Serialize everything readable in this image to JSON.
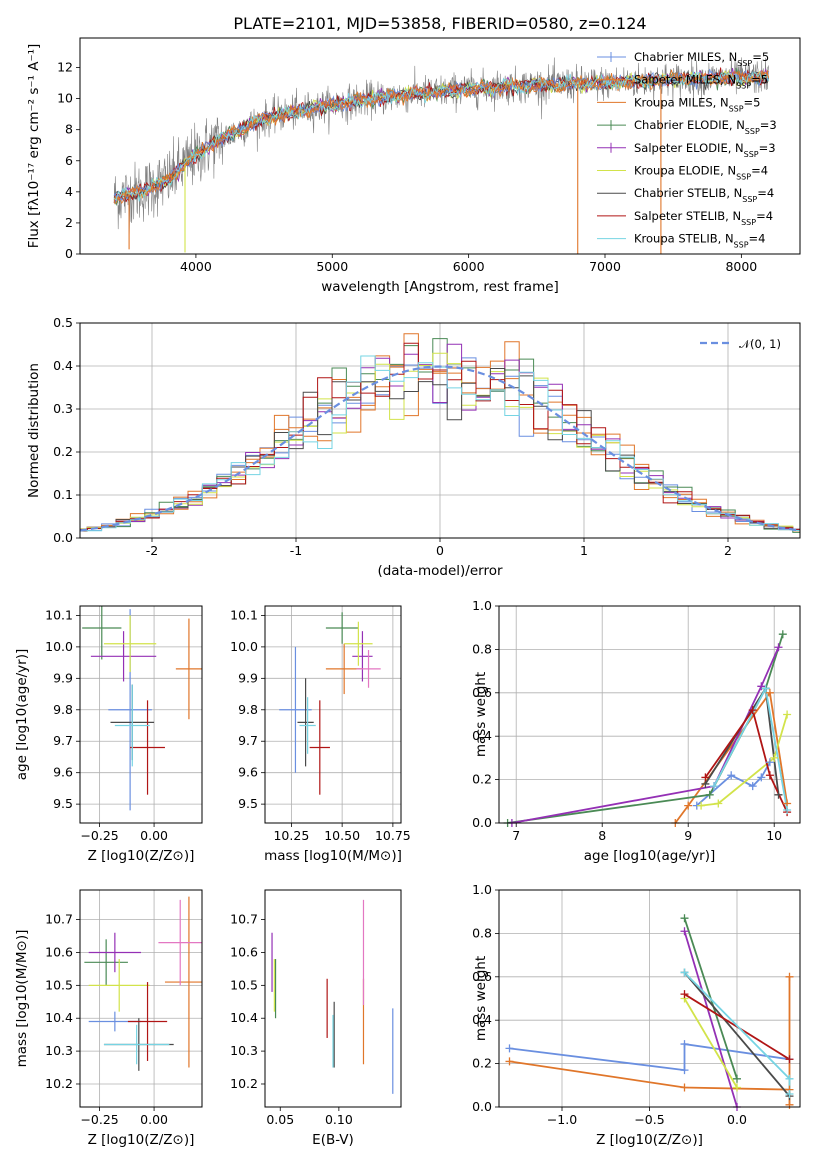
{
  "figure_title": "PLATE=2101, MJD=53858, FIBERID=0580, z=0.124",
  "colors": {
    "Chabrier MILES": "#6a8fe0",
    "Salpeter MILES": "#e0762a",
    "Kroupa MILES": "#e0762a",
    "Chabrier ELODIE": "#4a8a55",
    "Salpeter ELODIE": "#9430b5",
    "Kroupa ELODIE": "#d2e34a",
    "Chabrier STELIB": "#4a4a4a",
    "Salpeter STELIB": "#b01515",
    "Kroupa STELIB": "#76d4e3",
    "data": "#808080",
    "gaussian": "#6a8fe0",
    "pink": "#e377c2"
  },
  "chart_data": [
    {
      "id": "spectrum",
      "type": "line",
      "title": "PLATE=2101, MJD=53858, FIBERID=0580, z=0.124",
      "xlabel": "wavelength [Angstrom, rest frame]",
      "ylabel": "Flux [fλ10⁻¹⁷ erg cm⁻² s⁻¹ A⁻¹]",
      "xlim": [
        3150,
        8430
      ],
      "ylim": [
        0,
        13.9
      ],
      "xticks": [
        4000,
        5000,
        6000,
        7000,
        8000
      ],
      "yticks": [
        0,
        2,
        4,
        6,
        8,
        10,
        12
      ],
      "grid": false,
      "legend_position": "top-right",
      "continuum_x": [
        3400,
        3600,
        3800,
        3950,
        4100,
        4300,
        4500,
        4700,
        5000,
        5300,
        5600,
        6000,
        6300,
        6600,
        7000,
        7400,
        7800,
        8200
      ],
      "continuum_y": [
        3.6,
        4.0,
        4.8,
        6.0,
        7.0,
        7.9,
        8.7,
        9.1,
        9.6,
        10.0,
        10.3,
        10.6,
        10.8,
        10.9,
        11.0,
        11.2,
        11.3,
        11.4
      ],
      "series": [
        {
          "name": "Chabrier MILES, N_SSP=5"
        },
        {
          "name": "Salpeter MILES, N_SSP=5"
        },
        {
          "name": "Kroupa MILES, N_SSP=5"
        },
        {
          "name": "Chabrier ELODIE, N_SSP=3"
        },
        {
          "name": "Salpeter ELODIE, N_SSP=3"
        },
        {
          "name": "Kroupa ELODIE, N_SSP=4"
        },
        {
          "name": "Chabrier STELIB, N_SSP=4"
        },
        {
          "name": "Salpeter STELIB, N_SSP=4"
        },
        {
          "name": "Kroupa STELIB, N_SSP=4"
        }
      ]
    },
    {
      "id": "residuals",
      "type": "line",
      "xlabel": "(data-model)/error",
      "ylabel": "Normed distribution",
      "xlim": [
        -2.5,
        2.5
      ],
      "ylim": [
        0,
        0.5
      ],
      "xticks": [
        -2,
        -1,
        0,
        1,
        2
      ],
      "yticks": [
        0.0,
        0.1,
        0.2,
        0.3,
        0.4,
        0.5
      ],
      "grid": true,
      "legend_position": "top-right",
      "legend": "𝒩(0, 1)",
      "bin_width": 0.1
    },
    {
      "id": "age-vs-Z",
      "type": "scatter",
      "xlabel": "Z [log10(Z/Z⊙)]",
      "ylabel": "age  [log10(age/yr)]",
      "xlim": [
        -0.34,
        0.22
      ],
      "ylim": [
        9.44,
        10.13
      ],
      "xticks": [
        -0.25,
        0.0
      ],
      "xtick_labels": [
        "−0.25",
        "0.00"
      ],
      "yticks": [
        9.5,
        9.6,
        9.7,
        9.8,
        9.9,
        10.0,
        10.1
      ],
      "grid": true,
      "points": [
        {
          "name": "Chabrier MILES",
          "x": -0.11,
          "y": 9.8,
          "xerr": 0.1,
          "yerr": 0.32
        },
        {
          "name": "Salpeter MILES",
          "x": 0.16,
          "y": 9.93,
          "xerr": 0.06,
          "yerr": 0.16
        },
        {
          "name": "Chabrier ELODIE",
          "x": -0.24,
          "y": 10.06,
          "xerr": 0.09,
          "yerr": 0.1
        },
        {
          "name": "Salpeter ELODIE",
          "x": -0.14,
          "y": 9.97,
          "xerr": 0.15,
          "yerr": 0.08
        },
        {
          "name": "Kroupa ELODIE",
          "x": -0.11,
          "y": 10.01,
          "xerr": 0.12,
          "yerr": 0.09
        },
        {
          "name": "Chabrier STELIB",
          "x": -0.1,
          "y": 9.76,
          "xerr": 0.1,
          "yerr": 0.12
        },
        {
          "name": "Salpeter STELIB",
          "x": -0.03,
          "y": 9.68,
          "xerr": 0.08,
          "yerr": 0.15
        },
        {
          "name": "Kroupa STELIB",
          "x": -0.1,
          "y": 9.75,
          "xerr": 0.08,
          "yerr": 0.13
        }
      ]
    },
    {
      "id": "age-vs-mass",
      "type": "scatter",
      "xlabel": "mass [log10(M/M⊙)]",
      "xlim": [
        10.12,
        10.79
      ],
      "ylim": [
        9.44,
        10.13
      ],
      "xticks": [
        10.25,
        10.5,
        10.75
      ],
      "xtick_labels": [
        "10.25",
        "10.50",
        "10.75"
      ],
      "yticks": [
        9.5,
        9.6,
        9.7,
        9.8,
        9.9,
        10.0,
        10.1
      ],
      "grid": true,
      "points": [
        {
          "name": "Chabrier MILES",
          "x": 10.27,
          "y": 9.8,
          "xerr": 0.08,
          "yerr": 0.2
        },
        {
          "name": "Salpeter MILES",
          "x": 10.51,
          "y": 9.93,
          "xerr": 0.09,
          "yerr": 0.08
        },
        {
          "name": "Chabrier ELODIE",
          "x": 10.5,
          "y": 10.06,
          "xerr": 0.08,
          "yerr": 0.05
        },
        {
          "name": "Salpeter ELODIE",
          "x": 10.6,
          "y": 9.97,
          "xerr": 0.05,
          "yerr": 0.08
        },
        {
          "name": "Kroupa ELODIE",
          "x": 10.58,
          "y": 10.01,
          "xerr": 0.07,
          "yerr": 0.07
        },
        {
          "name": "Chabrier STELIB",
          "x": 10.32,
          "y": 9.76,
          "xerr": 0.04,
          "yerr": 0.14
        },
        {
          "name": "Salpeter STELIB",
          "x": 10.39,
          "y": 9.68,
          "xerr": 0.05,
          "yerr": 0.15
        },
        {
          "name": "Kroupa STELIB",
          "x": 10.33,
          "y": 9.75,
          "xerr": 0.04,
          "yerr": 0.09
        },
        {
          "name": "extra",
          "x": 10.63,
          "y": 9.93,
          "xerr": 0.06,
          "yerr": 0.06
        }
      ]
    },
    {
      "id": "massweight-vs-age",
      "type": "line",
      "xlabel": "age  [log10(age/yr)]",
      "ylabel": "mass weight",
      "xlim": [
        6.8,
        10.3
      ],
      "ylim": [
        0,
        1.0
      ],
      "xticks": [
        7,
        8,
        9,
        10
      ],
      "yticks": [
        0.0,
        0.2,
        0.4,
        0.6,
        0.8,
        1.0
      ],
      "grid": true,
      "series": [
        {
          "name": "Chabrier MILES",
          "x": [
            9.1,
            9.5,
            9.75,
            9.85,
            9.95
          ],
          "y": [
            0.08,
            0.22,
            0.17,
            0.21,
            0.28
          ]
        },
        {
          "name": "Salpeter MILES",
          "x": [
            8.85,
            9.0,
            9.95,
            10.15
          ],
          "y": [
            0.0,
            0.08,
            0.6,
            0.09
          ]
        },
        {
          "name": "Chabrier ELODIE",
          "x": [
            6.9,
            9.25,
            9.9,
            10.1
          ],
          "y": [
            0.0,
            0.13,
            0.62,
            0.87
          ]
        },
        {
          "name": "Salpeter ELODIE",
          "x": [
            6.95,
            9.3,
            9.85,
            10.05
          ],
          "y": [
            0.0,
            0.17,
            0.63,
            0.81
          ]
        },
        {
          "name": "Kroupa ELODIE",
          "x": [
            9.15,
            9.35,
            10.0,
            10.15
          ],
          "y": [
            0.08,
            0.09,
            0.3,
            0.5
          ]
        },
        {
          "name": "Chabrier STELIB",
          "x": [
            9.2,
            9.9,
            10.05
          ],
          "y": [
            0.18,
            0.62,
            0.13
          ]
        },
        {
          "name": "Salpeter STELIB",
          "x": [
            9.2,
            9.75,
            9.95,
            10.15
          ],
          "y": [
            0.21,
            0.52,
            0.22,
            0.05
          ]
        },
        {
          "name": "Kroupa STELIB",
          "x": [
            9.3,
            9.9,
            10.15
          ],
          "y": [
            0.17,
            0.62,
            0.06
          ]
        }
      ]
    },
    {
      "id": "mass-vs-Z",
      "type": "scatter",
      "xlabel": "Z [log10(Z/Z⊙)]",
      "ylabel": "mass [log10(M/M⊙)]",
      "xlim": [
        -0.34,
        0.22
      ],
      "ylim": [
        10.13,
        10.79
      ],
      "xticks": [
        -0.25,
        0.0
      ],
      "xtick_labels": [
        "−0.25",
        "0.00"
      ],
      "yticks": [
        10.2,
        10.3,
        10.4,
        10.5,
        10.6,
        10.7
      ],
      "grid": true,
      "points": [
        {
          "name": "Chabrier MILES",
          "x": -0.18,
          "y": 10.39,
          "xerr": 0.12,
          "yerr": 0.03
        },
        {
          "name": "Salpeter MILES",
          "x": 0.16,
          "y": 10.51,
          "xerr": 0.11,
          "yerr": 0.26
        },
        {
          "name": "Chabrier ELODIE",
          "x": -0.22,
          "y": 10.57,
          "xerr": 0.1,
          "yerr": 0.07
        },
        {
          "name": "Salpeter ELODIE",
          "x": -0.18,
          "y": 10.6,
          "xerr": 0.12,
          "yerr": 0.06
        },
        {
          "name": "Kroupa ELODIE",
          "x": -0.16,
          "y": 10.5,
          "xerr": 0.14,
          "yerr": 0.08
        },
        {
          "name": "Chabrier STELIB",
          "x": -0.07,
          "y": 10.32,
          "xerr": 0.16,
          "yerr": 0.08
        },
        {
          "name": "Salpeter STELIB",
          "x": -0.03,
          "y": 10.39,
          "xerr": 0.09,
          "yerr": 0.12
        },
        {
          "name": "Kroupa STELIB",
          "x": -0.08,
          "y": 10.32,
          "xerr": 0.15,
          "yerr": 0.06
        },
        {
          "name": "extra",
          "x": 0.12,
          "y": 10.63,
          "xerr": 0.1,
          "yerr": 0.13
        }
      ]
    },
    {
      "id": "mass-vs-EBV",
      "type": "scatter",
      "xlabel": "E(B-V)",
      "xlim": [
        0.037,
        0.153
      ],
      "ylim": [
        10.13,
        10.79
      ],
      "xticks": [
        0.05,
        0.1
      ],
      "xtick_labels": [
        "0.05",
        "0.10"
      ],
      "yticks": [
        10.2,
        10.3,
        10.4,
        10.5,
        10.6,
        10.7
      ],
      "grid": false,
      "points": [
        {
          "name": "Chabrier MILES",
          "x": 0.146,
          "y": 10.3,
          "xerr": 0.0,
          "yerr": 0.13
        },
        {
          "name": "Salpeter MILES",
          "x": 0.121,
          "y": 10.39,
          "xerr": 0.0,
          "yerr": 0.13
        },
        {
          "name": "Chabrier ELODIE",
          "x": 0.046,
          "y": 10.49,
          "xerr": 0.0,
          "yerr": 0.09
        },
        {
          "name": "Salpeter ELODIE",
          "x": 0.043,
          "y": 10.57,
          "xerr": 0.0,
          "yerr": 0.09
        },
        {
          "name": "Kroupa ELODIE",
          "x": 0.045,
          "y": 10.5,
          "xerr": 0.0,
          "yerr": 0.08
        },
        {
          "name": "Chabrier STELIB",
          "x": 0.096,
          "y": 10.35,
          "xerr": 0.0,
          "yerr": 0.1
        },
        {
          "name": "Salpeter STELIB",
          "x": 0.09,
          "y": 10.43,
          "xerr": 0.0,
          "yerr": 0.09
        },
        {
          "name": "Kroupa STELIB",
          "x": 0.095,
          "y": 10.33,
          "xerr": 0.0,
          "yerr": 0.08
        },
        {
          "name": "extra",
          "x": 0.121,
          "y": 10.6,
          "xerr": 0.0,
          "yerr": 0.16
        }
      ]
    },
    {
      "id": "massweight-vs-Z",
      "type": "line",
      "xlabel": "Z [log10(Z/Z⊙)]",
      "ylabel": "mass weight",
      "xlim": [
        -1.36,
        0.36
      ],
      "ylim": [
        0,
        1.0
      ],
      "xticks": [
        -1.0,
        -0.5,
        0.0
      ],
      "xtick_labels": [
        "−1.0",
        "−0.5",
        "0.0"
      ],
      "yticks": [
        0.0,
        0.2,
        0.4,
        0.6,
        0.8,
        1.0
      ],
      "grid": true,
      "series": [
        {
          "name": "Chabrier MILES",
          "x": [
            -1.3,
            -0.3,
            -0.3,
            0.3
          ],
          "y": [
            0.27,
            0.17,
            0.29,
            0.22
          ]
        },
        {
          "name": "Salpeter MILES",
          "x": [
            -1.3,
            -0.3,
            0.3,
            0.3,
            0.3
          ],
          "y": [
            0.21,
            0.09,
            0.08,
            0.01,
            0.6
          ]
        },
        {
          "name": "Chabrier ELODIE",
          "x": [
            -0.3,
            0.0
          ],
          "y": [
            0.87,
            0.13
          ]
        },
        {
          "name": "Salpeter ELODIE",
          "x": [
            -0.3,
            0.0
          ],
          "y": [
            0.81,
            0.0
          ]
        },
        {
          "name": "Kroupa ELODIE",
          "x": [
            -0.3,
            0.0
          ],
          "y": [
            0.5,
            0.09
          ]
        },
        {
          "name": "Chabrier STELIB",
          "x": [
            -0.3,
            0.3
          ],
          "y": [
            0.62,
            0.05
          ]
        },
        {
          "name": "Salpeter STELIB",
          "x": [
            -0.3,
            0.3
          ],
          "y": [
            0.52,
            0.22
          ]
        },
        {
          "name": "Kroupa STELIB",
          "x": [
            -0.3,
            0.3,
            0.3
          ],
          "y": [
            0.62,
            0.13,
            0.06
          ]
        }
      ]
    }
  ]
}
